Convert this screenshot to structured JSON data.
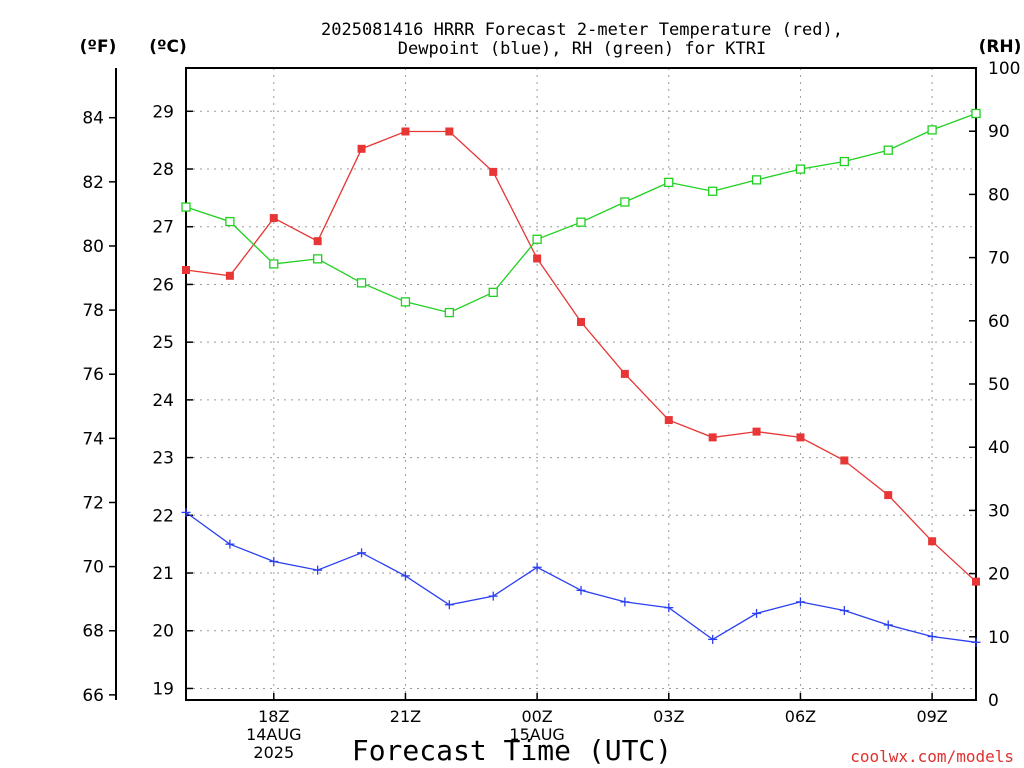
{
  "chart_data": {
    "type": "line",
    "title": "2025081416 HRRR Forecast 2-meter Temperature (red),",
    "subtitle": "Dewpoint (blue), RH (green) for KTRI",
    "xlabel": "Forecast Time (UTC)",
    "credit": "coolwx.com/models",
    "unit_labels": {
      "fahrenheit": "(ºF)",
      "celsius": "(ºC)",
      "rh": "(RH)"
    },
    "x_hours": [
      16,
      17,
      18,
      19,
      20,
      21,
      22,
      23,
      24,
      25,
      26,
      27,
      28,
      29,
      30,
      31,
      32,
      33,
      34
    ],
    "x_range": [
      16,
      34
    ],
    "x_ticks": [
      {
        "hour": 18,
        "lines": [
          "18Z",
          "14AUG",
          "2025"
        ]
      },
      {
        "hour": 21,
        "lines": [
          "21Z"
        ]
      },
      {
        "hour": 24,
        "lines": [
          "00Z",
          "15AUG"
        ]
      },
      {
        "hour": 27,
        "lines": [
          "03Z"
        ]
      },
      {
        "hour": 30,
        "lines": [
          "06Z"
        ]
      },
      {
        "hour": 33,
        "lines": [
          "09Z"
        ]
      }
    ],
    "temp_axis_c": {
      "range": [
        18.8,
        29.75
      ],
      "ticks": [
        19,
        20,
        21,
        22,
        23,
        24,
        25,
        26,
        27,
        28,
        29
      ]
    },
    "temp_axis_f": {
      "ticks": [
        66,
        68,
        70,
        72,
        74,
        76,
        78,
        80,
        82,
        84
      ]
    },
    "rh_axis": {
      "range": [
        0,
        100
      ],
      "ticks": [
        0,
        10,
        20,
        30,
        40,
        50,
        60,
        70,
        80,
        90,
        100
      ]
    },
    "grid": true,
    "colors": {
      "temperature": "#e83535",
      "dewpoint": "#2a3ff0",
      "rh": "#20d020"
    },
    "series": [
      {
        "name": "Temperature",
        "axis": "celsius",
        "marker": "filled-square",
        "values": [
          26.25,
          26.15,
          27.15,
          26.75,
          28.35,
          28.65,
          28.65,
          27.95,
          26.45,
          25.35,
          24.45,
          23.65,
          23.35,
          23.45,
          23.35,
          22.95,
          22.35,
          21.55,
          20.85
        ]
      },
      {
        "name": "Dewpoint",
        "axis": "celsius",
        "marker": "plus",
        "values": [
          22.05,
          21.5,
          21.2,
          21.05,
          21.35,
          20.95,
          20.45,
          20.6,
          21.1,
          20.7,
          20.5,
          20.4,
          19.85,
          20.3,
          20.5,
          20.35,
          20.1,
          19.9,
          19.8
        ]
      },
      {
        "name": "RH",
        "axis": "rh",
        "marker": "open-square",
        "values": [
          78,
          75.7,
          69,
          69.8,
          66,
          63,
          61.3,
          64.5,
          72.9,
          75.6,
          78.8,
          81.9,
          80.5,
          82.3,
          84,
          85.2,
          87,
          90.2,
          92.8
        ]
      }
    ]
  }
}
